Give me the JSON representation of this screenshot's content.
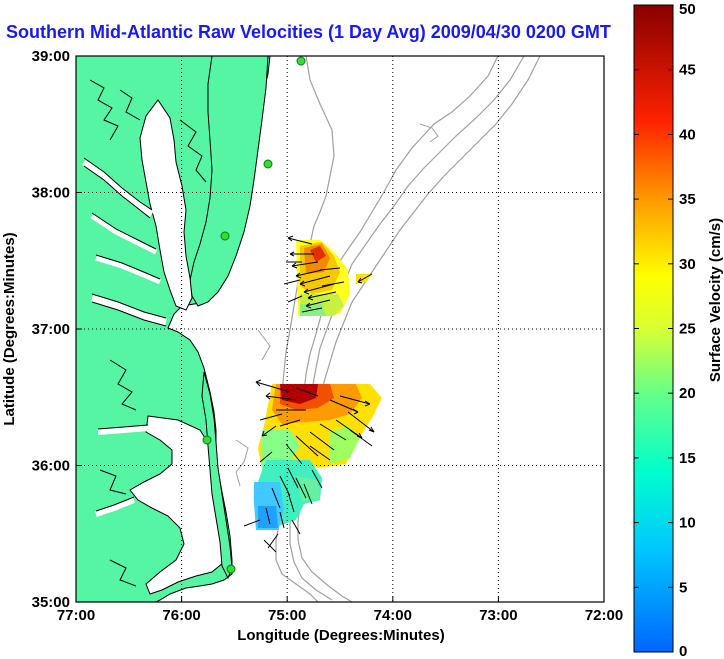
{
  "title": "Southern Mid-Atlantic Raw Velocities (1 Day Avg) 2009/04/30 0200 GMT",
  "map": {
    "xlabel": "Longitude (Degrees:Minutes)",
    "ylabel": "Latitude (Degrees:Minutes)",
    "lon_range": [
      -77,
      -72
    ],
    "lat_range": [
      35,
      39
    ],
    "x_ticks": [
      {
        "lon": -77,
        "label": "77:00"
      },
      {
        "lon": -76,
        "label": "76:00"
      },
      {
        "lon": -75,
        "label": "75:00"
      },
      {
        "lon": -74,
        "label": "74:00"
      },
      {
        "lon": -73,
        "label": "73:00"
      },
      {
        "lon": -72,
        "label": "72:00"
      }
    ],
    "y_ticks": [
      {
        "lat": 35,
        "label": "35:00"
      },
      {
        "lat": 36,
        "label": "36:00"
      },
      {
        "lat": 37,
        "label": "37:00"
      },
      {
        "lat": 38,
        "label": "38:00"
      },
      {
        "lat": 39,
        "label": "39:00"
      }
    ],
    "grid": "dotted",
    "colors": {
      "land": "#55f5a4",
      "coastline": "#000000",
      "bathymetry": "#a0a0a0",
      "station": "#33dd33",
      "title": "#1a1aee"
    }
  },
  "colorbar": {
    "label": "Surface Velocity (cm/s)",
    "range": [
      0,
      50
    ],
    "ticks": [
      "0",
      "5",
      "10",
      "15",
      "20",
      "25",
      "30",
      "35",
      "40",
      "45",
      "50"
    ],
    "colormap": "jet"
  }
}
